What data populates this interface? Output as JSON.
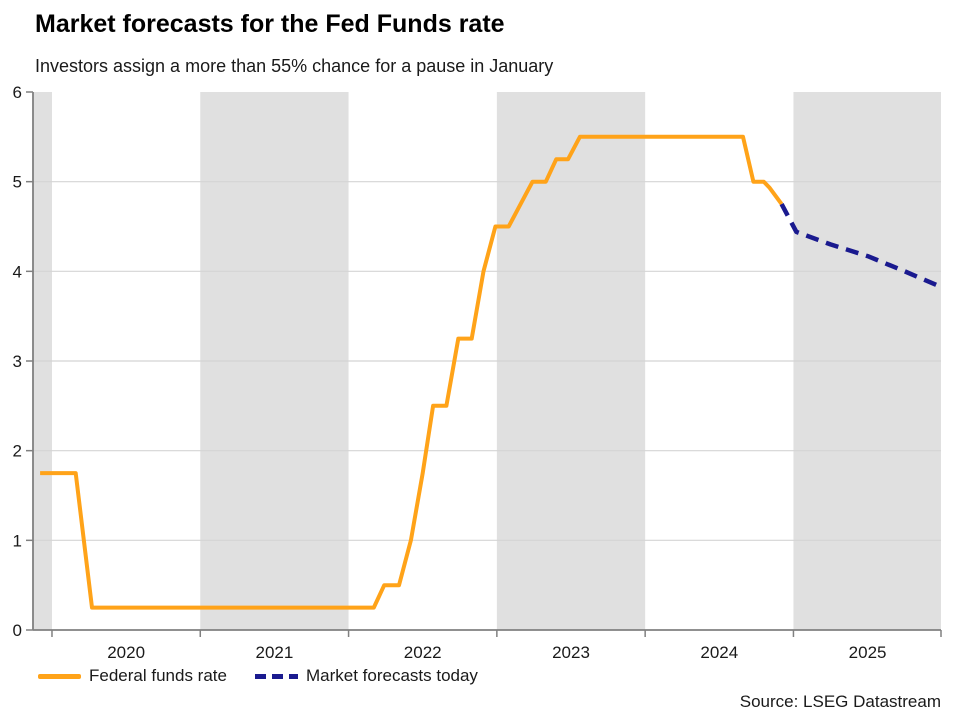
{
  "header": {
    "title": "Market forecasts for the Fed Funds rate",
    "subtitle": "Investors assign a more than 55% chance for a pause in January"
  },
  "legend": {
    "items": [
      {
        "label": "Federal funds rate",
        "style": "solid",
        "color": "#FFA319"
      },
      {
        "label": "Market forecasts today",
        "style": "dashed",
        "color": "#1A1A8F"
      }
    ]
  },
  "source": "Source: LSEG Datastream",
  "chart_data": {
    "type": "line",
    "title": "Market forecasts for the Fed Funds rate",
    "subtitle": "Investors assign a more than 55% chance for a pause in January",
    "xlabel": "",
    "ylabel": "",
    "ylim": [
      0,
      6
    ],
    "yticks": [
      0,
      1,
      2,
      3,
      4,
      5,
      6
    ],
    "xlim": [
      2019.872,
      2025.995
    ],
    "x_year_ticks": [
      2020,
      2021,
      2022,
      2023,
      2024,
      2025,
      2026
    ],
    "x_year_labels": [
      "2020",
      "2021",
      "2022",
      "2023",
      "2024",
      "2025"
    ],
    "grid": "horizontal",
    "legend_position": "bottom",
    "shaded_year_bands": [
      [
        2019.872,
        2020.0
      ],
      [
        2021.0,
        2022.0
      ],
      [
        2023.0,
        2024.0
      ],
      [
        2025.0,
        2025.995
      ]
    ],
    "band_color": "#e0e0e0",
    "grid_color": "#d4d4d4",
    "axis_color": "#808080",
    "series": [
      {
        "name": "Federal funds rate",
        "color": "#FFA319",
        "dash": null,
        "width": 4,
        "points": [
          [
            2019.92,
            1.75
          ],
          [
            2020.16,
            1.75
          ],
          [
            2020.27,
            0.25
          ],
          [
            2022.17,
            0.25
          ],
          [
            2022.24,
            0.5
          ],
          [
            2022.34,
            0.5
          ],
          [
            2022.42,
            1.0
          ],
          [
            2022.5,
            1.75
          ],
          [
            2022.57,
            2.5
          ],
          [
            2022.66,
            2.5
          ],
          [
            2022.74,
            3.25
          ],
          [
            2022.83,
            3.25
          ],
          [
            2022.91,
            4.0
          ],
          [
            2022.99,
            4.5
          ],
          [
            2023.08,
            4.5
          ],
          [
            2023.16,
            4.75
          ],
          [
            2023.24,
            5.0
          ],
          [
            2023.33,
            5.0
          ],
          [
            2023.4,
            5.25
          ],
          [
            2023.48,
            5.25
          ],
          [
            2023.56,
            5.5
          ],
          [
            2024.66,
            5.5
          ],
          [
            2024.73,
            5.0
          ],
          [
            2024.8,
            5.0
          ],
          [
            2024.84,
            4.93
          ],
          [
            2024.92,
            4.75
          ]
        ]
      },
      {
        "name": "Market forecasts today",
        "color": "#1A1A8F",
        "dash": [
          13,
          8
        ],
        "width": 4.5,
        "points": [
          [
            2024.92,
            4.75
          ],
          [
            2025.02,
            4.44
          ],
          [
            2025.25,
            4.3
          ],
          [
            2025.5,
            4.17
          ],
          [
            2025.75,
            4.0
          ],
          [
            2025.99,
            3.83
          ]
        ]
      }
    ]
  }
}
